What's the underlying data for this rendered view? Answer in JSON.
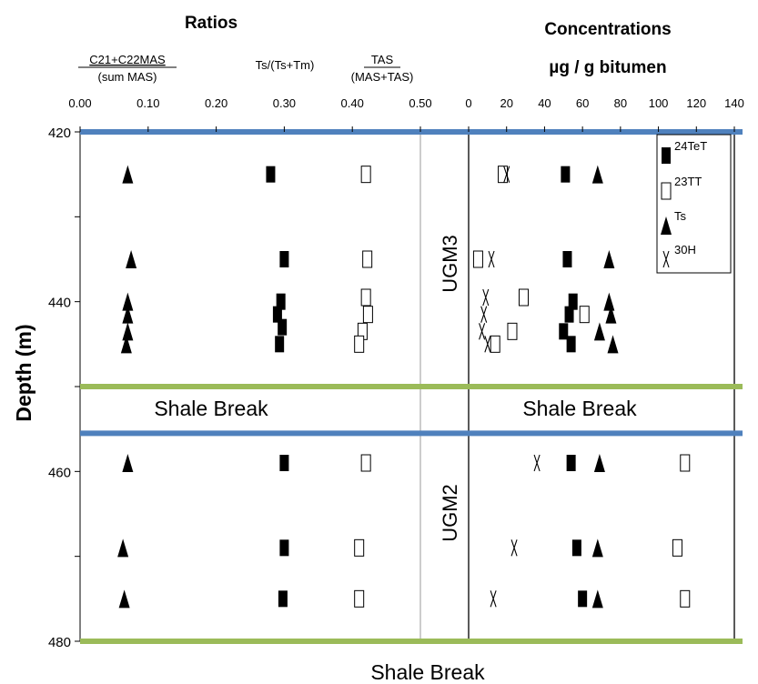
{
  "chart_data": {
    "type": "scatter",
    "ylabel": "Depth (m)",
    "y_axis": {
      "range": [
        420,
        480
      ],
      "ticks": [
        "420",
        "440",
        "460",
        "480"
      ],
      "inverted": true
    },
    "panels": [
      {
        "title": "Ratios",
        "x_range": [
          0.0,
          0.5
        ],
        "x_ticks": [
          "0.00",
          "0.10",
          "0.20",
          "0.30",
          "0.40",
          "0.50"
        ],
        "column_labels": {
          "mas_num": "C21+C22MAS",
          "mas_den": "(sum MAS)",
          "tsm": "Ts/(Ts+Tm)",
          "tas_num": "TAS",
          "tas_den": "(MAS+TAS)"
        },
        "series": [
          {
            "key": "mas",
            "marker": "triangle",
            "points": [
              [
                0.07,
                425
              ],
              [
                0.075,
                435
              ],
              [
                0.07,
                440
              ],
              [
                0.07,
                441.5
              ],
              [
                0.07,
                443.5
              ],
              [
                0.068,
                445
              ],
              [
                0.07,
                459
              ],
              [
                0.063,
                469
              ],
              [
                0.065,
                475
              ]
            ]
          },
          {
            "key": "tsm",
            "marker": "square-filled",
            "points": [
              [
                0.28,
                425
              ],
              [
                0.3,
                435
              ],
              [
                0.295,
                440
              ],
              [
                0.29,
                441.5
              ],
              [
                0.297,
                443
              ],
              [
                0.293,
                445
              ],
              [
                0.3,
                459
              ],
              [
                0.3,
                469
              ],
              [
                0.298,
                475
              ]
            ]
          },
          {
            "key": "tas",
            "marker": "square-open",
            "points": [
              [
                0.42,
                425
              ],
              [
                0.422,
                435
              ],
              [
                0.42,
                439.5
              ],
              [
                0.423,
                441.5
              ],
              [
                0.415,
                443.5
              ],
              [
                0.41,
                445
              ],
              [
                0.42,
                459
              ],
              [
                0.41,
                469
              ],
              [
                0.41,
                475
              ]
            ]
          }
        ]
      },
      {
        "title": "Concentrations",
        "subtitle": "µg / g bitumen",
        "x_range": [
          0,
          140
        ],
        "x_ticks": [
          "0",
          "20",
          "40",
          "60",
          "80",
          "100",
          "120",
          "140"
        ],
        "series": [
          {
            "name": "24TeT",
            "marker": "square-filled",
            "points": [
              [
                51,
                425
              ],
              [
                52,
                435
              ],
              [
                55,
                440
              ],
              [
                53,
                441.5
              ],
              [
                50,
                443.5
              ],
              [
                54,
                445
              ],
              [
                54,
                459
              ],
              [
                57,
                469
              ],
              [
                60,
                475
              ]
            ]
          },
          {
            "name": "23TT",
            "marker": "square-open",
            "points": [
              [
                18,
                425
              ],
              [
                5,
                435
              ],
              [
                29,
                439.5
              ],
              [
                61,
                441.5
              ],
              [
                23,
                443.5
              ],
              [
                14,
                445
              ],
              [
                114,
                459
              ],
              [
                110,
                469
              ],
              [
                114,
                475
              ]
            ]
          },
          {
            "name": "Ts",
            "marker": "triangle",
            "points": [
              [
                68,
                425
              ],
              [
                74,
                435
              ],
              [
                74,
                440
              ],
              [
                75,
                441.5
              ],
              [
                69,
                443.5
              ],
              [
                76,
                445
              ],
              [
                69,
                459
              ],
              [
                68,
                469
              ],
              [
                68,
                475
              ]
            ]
          },
          {
            "name": "30H",
            "marker": "x",
            "points": [
              [
                20,
                425
              ],
              [
                12,
                435
              ],
              [
                9,
                439.5
              ],
              [
                8,
                441.5
              ],
              [
                7,
                443.5
              ],
              [
                10,
                445
              ],
              [
                36,
                459
              ],
              [
                24,
                469
              ],
              [
                13,
                475
              ]
            ]
          }
        ]
      }
    ],
    "units": [
      "UGM3",
      "UGM2"
    ],
    "annotations": [
      "Shale Break",
      "Shale Break",
      "Shale Break"
    ],
    "boundaries": [
      {
        "depth": 420,
        "color": "#4F81BD"
      },
      {
        "depth": 450,
        "color": "#9BBB59"
      },
      {
        "depth": 455.5,
        "color": "#4F81BD"
      },
      {
        "depth": 480,
        "color": "#9BBB59"
      }
    ],
    "legend_position": "top-right"
  }
}
